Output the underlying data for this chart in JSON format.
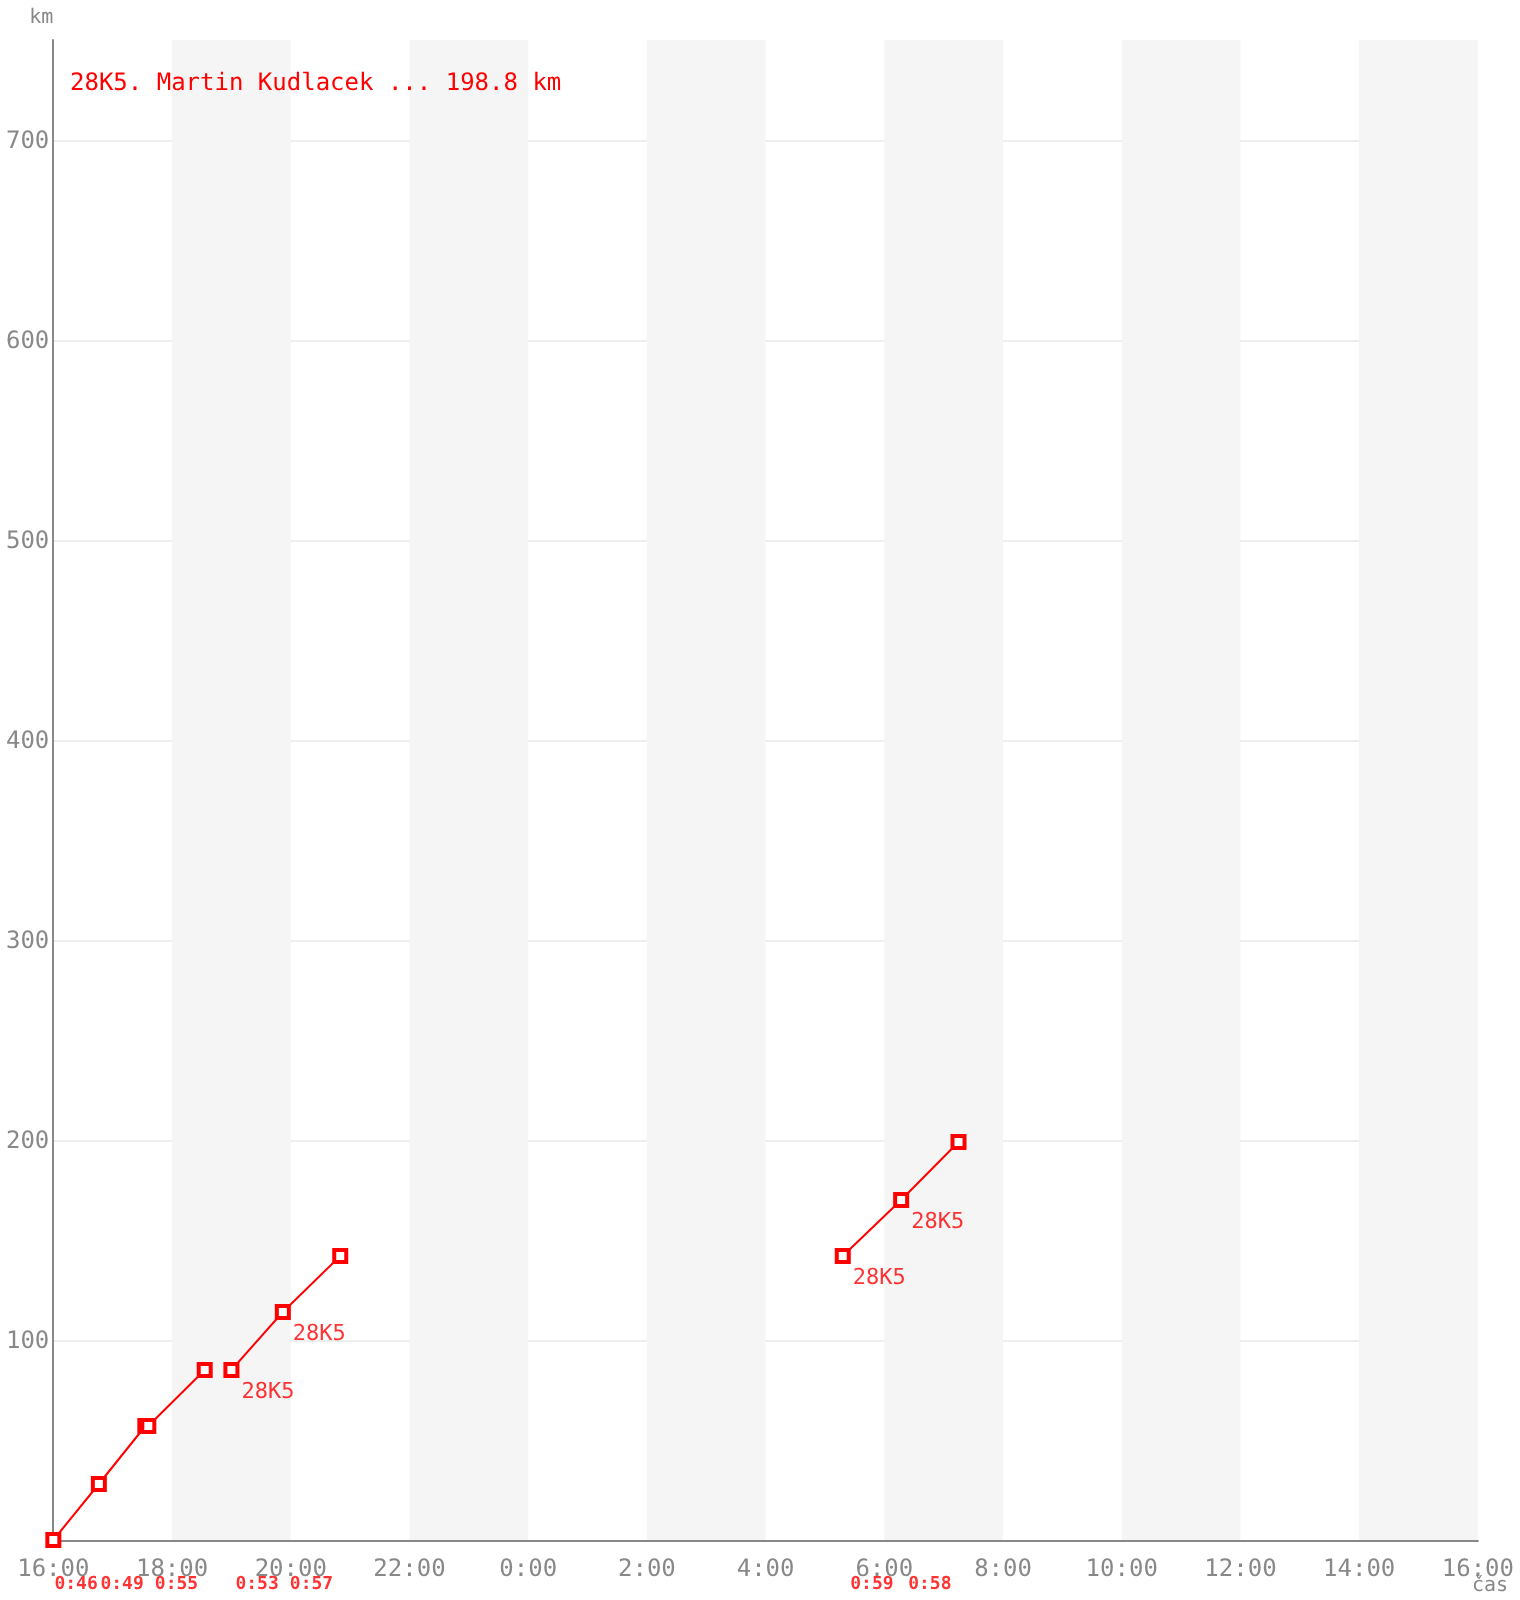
{
  "chart_data": {
    "type": "line",
    "title": "28K5. Martin Kudlacek ... 198.8 km",
    "xlabel": "čas",
    "ylabel": "km",
    "xlim": [
      "--01-01T16:00",
      "--01-02T16:00"
    ],
    "xticks": [
      {
        "value": "--01-01T16:00",
        "label": "16:00"
      },
      {
        "value": "--01-01T18:00",
        "label": "18:00"
      },
      {
        "value": "--01-01T20:00",
        "label": "20:00"
      },
      {
        "value": "--01-01T22:00",
        "label": "22:00"
      },
      {
        "value": "--01-02T00:00",
        "label": "0:00"
      },
      {
        "value": "--01-02T02:00",
        "label": "2:00"
      },
      {
        "value": "--01-02T04:00",
        "label": "4:00"
      },
      {
        "value": "--01-02T06:00",
        "label": "6:00"
      },
      {
        "value": "--01-02T08:00",
        "label": "8:00"
      },
      {
        "value": "--01-02T10:00",
        "label": "10:00"
      },
      {
        "value": "--01-02T12:00",
        "label": "12:00"
      },
      {
        "value": "--01-02T14:00",
        "label": "14:00"
      },
      {
        "value": "--01-02T16:00",
        "label": "16:00"
      }
    ],
    "ylim": [
      0,
      750
    ],
    "yticks": [
      100,
      200,
      300,
      400,
      500,
      600,
      700
    ],
    "grid": "y",
    "marker": "square",
    "line_style": "solid",
    "series": [
      {
        "color": "#ff0000",
        "x": [
          "--01-01T16:00",
          "--01-01T16:46",
          "--01-01T17:33",
          "--01-01T17:36",
          "--01-01T18:33"
        ],
        "values": [
          0,
          28,
          57,
          57,
          85
        ]
      },
      {
        "color": "#ff0000",
        "x": [
          "--01-01T19:00",
          "--01-01T19:52",
          "--01-01T20:50"
        ],
        "values": [
          85,
          114,
          142
        ]
      },
      {
        "color": "#ff0000",
        "x": [
          "--01-02T05:18",
          "--01-02T06:17",
          "--01-02T07:15"
        ],
        "values": [
          142,
          170,
          199
        ]
      }
    ],
    "bands": [
      {
        "axis": "x",
        "from": "--01-01T18:00",
        "to": "--01-01T20:00",
        "color": "#f5f5f5"
      },
      {
        "axis": "x",
        "from": "--01-01T22:00",
        "to": "--01-02T00:00",
        "color": "#f5f5f5"
      },
      {
        "axis": "x",
        "from": "--01-02T02:00",
        "to": "--01-02T04:00",
        "color": "#f5f5f5"
      },
      {
        "axis": "x",
        "from": "--01-02T06:00",
        "to": "--01-02T08:00",
        "color": "#f5f5f5"
      },
      {
        "axis": "x",
        "from": "--01-02T10:00",
        "to": "--01-02T12:00",
        "color": "#f5f5f5"
      },
      {
        "axis": "x",
        "from": "--01-02T14:00",
        "to": "--01-02T16:00",
        "color": "#f5f5f5"
      }
    ],
    "annotations": [
      {
        "text": "28K5",
        "x": "--01-01T19:00",
        "y": 85
      },
      {
        "text": "28K5",
        "x": "--01-01T19:52",
        "y": 114
      },
      {
        "text": "28K5",
        "x": "--01-02T05:18",
        "y": 142
      },
      {
        "text": "28K5",
        "x": "--01-02T06:17",
        "y": 170
      },
      "0:46",
      "0:49",
      "0:55",
      "0:53",
      "0:57",
      "0:59",
      "0:58"
    ]
  }
}
